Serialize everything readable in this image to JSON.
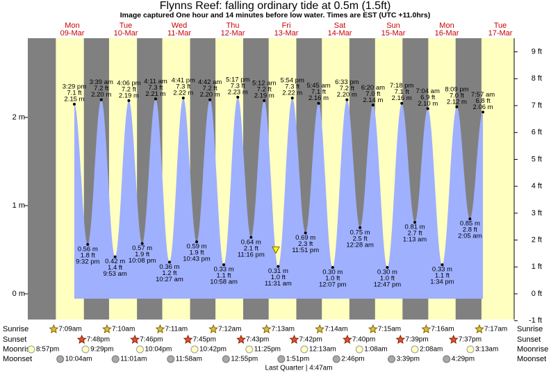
{
  "chart_data": {
    "type": "tide",
    "title": "Flynns Reef: falling  ordinary tide at 0.5m (1.5ft)",
    "subtitle": "Image captured One hour and 14 minutes before low water. Times are EST (UTC +11.0hrs)",
    "current_level": 0.5,
    "days": [
      "Mon",
      "Tue",
      "Wed",
      "Thu",
      "Fri",
      "Sat",
      "Sun",
      "Mon",
      "Tue"
    ],
    "dates": [
      "09-Mar",
      "10-Mar",
      "11-Mar",
      "12-Mar",
      "13-Mar",
      "14-Mar",
      "15-Mar",
      "16-Mar",
      "17-Mar"
    ],
    "tides": {
      "times": [
        "3:29 pm",
        "9:32 pm",
        "3:39 am",
        "9:53 am",
        "4:06 pm",
        "10:08 pm",
        "4:11 am",
        "10:27 am",
        "4:41 pm",
        "10:43 pm",
        "4:42 am",
        "10:58 am",
        "5:17 pm",
        "11:16 pm",
        "5:12 am",
        "11:31 am",
        "5:54 pm",
        "11:51 pm",
        "5:45 am",
        "12:07 pm",
        "6:33 pm",
        "12:28 am",
        "6:20 am",
        "12:47 pm",
        "7:18 pm",
        "1:13 am",
        "7:04 am",
        "1:34 pm",
        "8:09 pm",
        "2:05 am",
        "7:57 am"
      ],
      "values": [
        2.15,
        0.56,
        2.2,
        0.42,
        2.19,
        0.57,
        2.21,
        0.36,
        2.22,
        0.59,
        2.2,
        0.33,
        2.23,
        0.64,
        2.19,
        0.31,
        2.22,
        0.69,
        2.16,
        0.3,
        2.2,
        0.75,
        2.14,
        0.3,
        2.16,
        0.81,
        2.1,
        0.33,
        2.12,
        0.85,
        2.06
      ],
      "value_labels": [
        "2.15 m",
        "0.56 m",
        "2.20 m",
        "0.42 m",
        "2.19 m",
        "0.57 m",
        "2.21 m",
        "0.36 m",
        "2.22 m",
        "0.59 m",
        "2.20 m",
        "0.33 m",
        "2.23 m",
        "0.64 m",
        "2.19 m",
        "0.31 m",
        "2.22 m",
        "0.69 m",
        "2.16 m",
        "0.30 m",
        "2.20 m",
        "0.75 m",
        "2.14 m",
        "0.30 m",
        "2.16 m",
        "0.81 m",
        "2.10 m",
        "0.33 m",
        "2.12 m",
        "0.85 m",
        "2.06 m"
      ],
      "ft_labels": [
        "7.1 ft",
        "1.8 ft",
        "7.2 ft",
        "1.4 ft",
        "7.2 ft",
        "1.9 ft",
        "7.3 ft",
        "1.2 ft",
        "7.3 ft",
        "1.9 ft",
        "7.2 ft",
        "1.1 ft",
        "7.3 ft",
        "2.1 ft",
        "7.2 ft",
        "1.0 ft",
        "7.3 ft",
        "2.3 ft",
        "7.1 ft",
        "1.0 ft",
        "7.2 ft",
        "2.5 ft",
        "7.0 ft",
        "1.0 ft",
        "7.1 ft",
        "2.7 ft",
        "6.9 ft",
        "1.1 ft",
        "7.0 ft",
        "2.8 ft",
        "6.8 ft"
      ],
      "color": "#9fb0ff"
    },
    "ylim": [
      -0.291,
      2.898
    ],
    "yticks": [
      {
        "value": 2,
        "label": "2 m"
      },
      {
        "value": 1,
        "label": "1 m"
      },
      {
        "value": 0,
        "label": "0 m"
      }
    ],
    "y2lim": [
      -0.955,
      9.507
    ],
    "y2ticks": [
      {
        "value": 9,
        "label": "9 ft"
      },
      {
        "value": 8,
        "label": "8 ft"
      },
      {
        "value": 7,
        "label": "7 ft"
      },
      {
        "value": 6,
        "label": "6 ft"
      },
      {
        "value": 5,
        "label": "5 ft"
      },
      {
        "value": 4,
        "label": "4 ft"
      },
      {
        "value": 3,
        "label": "3 ft"
      },
      {
        "value": 2,
        "label": "2 ft"
      },
      {
        "value": 1,
        "label": "1 ft"
      },
      {
        "value": 0,
        "label": "0 ft"
      },
      {
        "value": -1,
        "label": "-1 ft"
      }
    ],
    "day_color": "#ffffc0",
    "night_color": "#808080",
    "almanac": [
      {
        "label": "Sunrise",
        "times": [
          "7:09am",
          "7:10am",
          "7:11am",
          "7:12am",
          "7:13am",
          "7:14am",
          "7:15am",
          "7:16am",
          "7:17am"
        ]
      },
      {
        "label": "Sunset",
        "times": [
          "7:48pm",
          "7:46pm",
          "7:45pm",
          "7:43pm",
          "7:42pm",
          "7:40pm",
          "7:39pm",
          "7:37pm"
        ]
      },
      {
        "label": "Moonrise",
        "times": [
          "8:57pm",
          "9:29pm",
          "10:04pm",
          "10:42pm",
          "11:25pm",
          "12:13am",
          "1:08am",
          "2:08am",
          "3:13am"
        ]
      },
      {
        "label": "Moonset",
        "times": [
          "10:04am",
          "11:01am",
          "11:58am",
          "12:55pm",
          "1:51pm",
          "2:46pm",
          "3:39pm",
          "4:29pm"
        ]
      }
    ],
    "moon_phase": "Last Quarter | 4:47am"
  }
}
